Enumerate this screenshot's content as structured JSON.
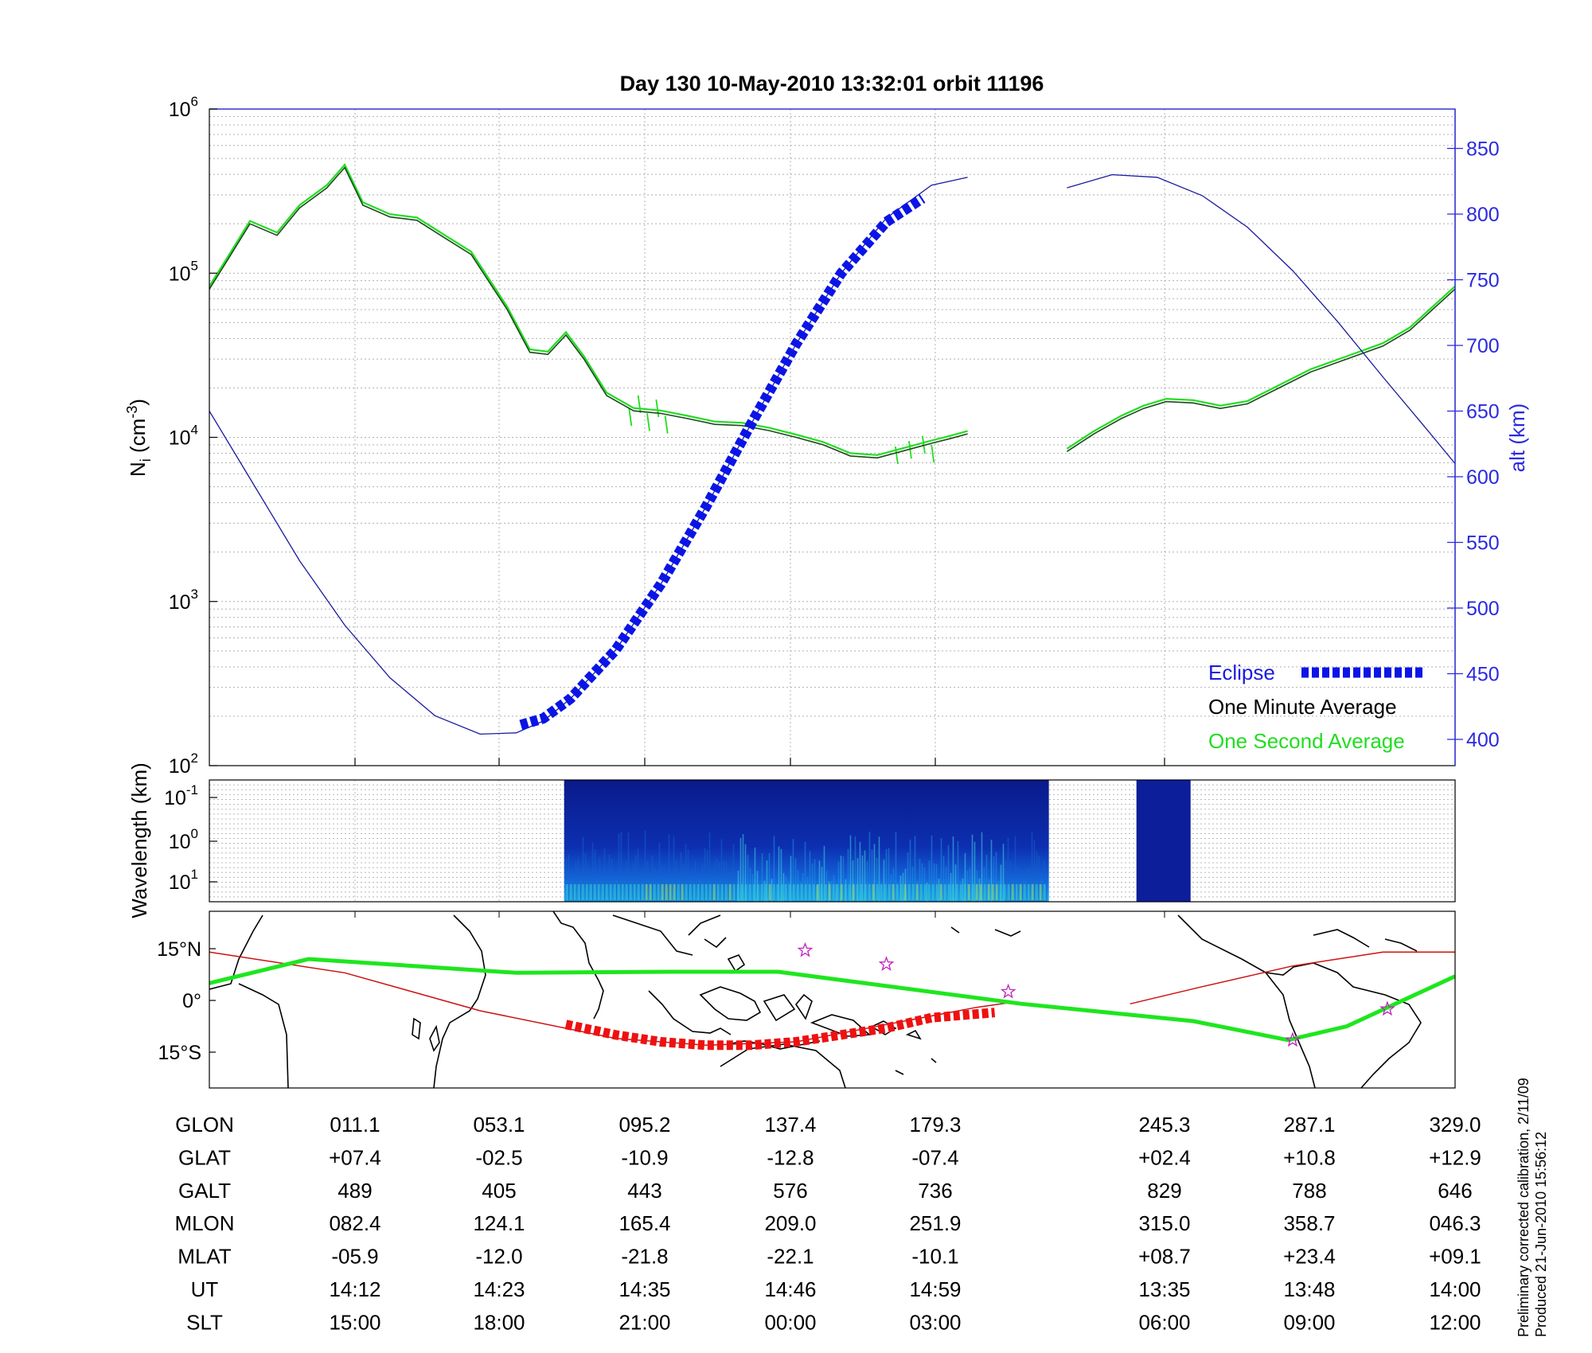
{
  "title": "Day 130  10-May-2010 13:32:01   orbit 11196",
  "footer": {
    "line1": "Preliminary corrected calibration, 2/11/09",
    "line2": "Produced 21-Jun-2010 15:56:12"
  },
  "colors": {
    "minute_avg": "#1a4a1a",
    "second_avg": "#22dd22",
    "altitude": "#1a1aa0",
    "eclipse": "#0a14e6",
    "track": "#1ee61e",
    "mag_equator": "#cc1111",
    "eclipse_map": "#ee1111",
    "star": "#c020c0"
  },
  "chart_data": [
    {
      "type": "line",
      "panel": "density",
      "ylabel": "N_i (cm^-3)",
      "ylabel_main": "N",
      "ylabel_sub": "i",
      "ylabel_unit": "(cm",
      "ylabel_exp": "-3",
      "ylabel_close": ")",
      "yscale": "log",
      "ylim": [
        100,
        1000000
      ],
      "left_ticks": [
        {
          "base": "10",
          "exp": "2",
          "value": 100
        },
        {
          "base": "10",
          "exp": "3",
          "value": 1000
        },
        {
          "base": "10",
          "exp": "4",
          "value": 10000
        },
        {
          "base": "10",
          "exp": "5",
          "value": 100000
        },
        {
          "base": "10",
          "exp": "6",
          "value": 1000000
        }
      ],
      "y2label": "alt (km)",
      "y2lim": [
        380,
        880
      ],
      "right_ticks": [
        "400",
        "450",
        "500",
        "550",
        "600",
        "650",
        "700",
        "750",
        "800",
        "850"
      ],
      "x_ticks_UT": [
        "14:12",
        "14:23",
        "14:35",
        "14:46",
        "14:59",
        "13:35",
        "13:48",
        "14:00"
      ],
      "grid": true,
      "legend": {
        "placement": "bottom-right",
        "entries": [
          "Eclipse",
          "One Minute Average",
          "One Second Average"
        ]
      },
      "series": [
        {
          "name": "One Minute Average",
          "segments": [
            [
              [
                0.0,
                80000
              ],
              [
                0.2,
                120000
              ],
              [
                0.45,
                200000
              ],
              [
                0.75,
                170000
              ],
              [
                1.0,
                250000
              ],
              [
                1.3,
                330000
              ],
              [
                1.5,
                440000
              ],
              [
                1.7,
                260000
              ],
              [
                2.0,
                220000
              ],
              [
                2.3,
                210000
              ],
              [
                2.6,
                165000
              ],
              [
                2.9,
                130000
              ],
              [
                3.3,
                60000
              ],
              [
                3.55,
                33000
              ],
              [
                3.75,
                32000
              ],
              [
                3.95,
                42000
              ],
              [
                4.15,
                30000
              ],
              [
                4.4,
                18000
              ],
              [
                4.7,
                14500
              ],
              [
                5.0,
                14000
              ],
              [
                5.3,
                13000
              ],
              [
                5.6,
                12000
              ],
              [
                5.9,
                11800
              ],
              [
                6.2,
                11000
              ],
              [
                6.5,
                10000
              ],
              [
                6.8,
                9000
              ],
              [
                7.1,
                7700
              ],
              [
                7.4,
                7500
              ],
              [
                7.7,
                8300
              ],
              [
                8.0,
                9200
              ],
              [
                8.2,
                9800
              ],
              [
                8.4,
                10500
              ]
            ],
            [
              [
                9.5,
                8200
              ],
              [
                9.8,
                10500
              ],
              [
                10.1,
                13000
              ],
              [
                10.35,
                15000
              ],
              [
                10.6,
                16500
              ],
              [
                10.9,
                16200
              ],
              [
                11.2,
                15000
              ],
              [
                11.5,
                16000
              ],
              [
                11.85,
                20000
              ],
              [
                12.2,
                25000
              ],
              [
                12.6,
                30000
              ],
              [
                13.0,
                36000
              ],
              [
                13.3,
                45000
              ],
              [
                13.55,
                60000
              ],
              [
                13.8,
                80000
              ]
            ]
          ]
        },
        {
          "name": "One Second Average",
          "spikes": [
            [
              4.65,
              15000
            ],
            [
              4.75,
              18000
            ],
            [
              4.85,
              14000
            ],
            [
              4.95,
              17000
            ],
            [
              5.05,
              13500
            ],
            [
              7.6,
              8800
            ],
            [
              7.75,
              9500
            ],
            [
              7.9,
              10200
            ],
            [
              8.0,
              9000
            ]
          ]
        },
        {
          "name": "Altitude",
          "axis": "right",
          "segments": [
            [
              [
                0.0,
                650
              ],
              [
                0.5,
                593
              ],
              [
                1.0,
                536
              ],
              [
                1.5,
                487
              ],
              [
                2.0,
                447
              ],
              [
                2.5,
                418
              ],
              [
                3.0,
                404
              ],
              [
                3.4,
                405
              ],
              [
                3.7,
                414
              ],
              [
                4.0,
                431
              ],
              [
                4.5,
                468
              ],
              [
                5.0,
                518
              ],
              [
                5.5,
                577
              ],
              [
                6.0,
                640
              ],
              [
                6.5,
                701
              ],
              [
                7.0,
                755
              ],
              [
                7.5,
                797
              ],
              [
                8.0,
                822
              ],
              [
                8.4,
                828
              ]
            ],
            [
              [
                9.5,
                820
              ],
              [
                10.0,
                830
              ],
              [
                10.5,
                828
              ],
              [
                11.0,
                814
              ],
              [
                11.5,
                790
              ],
              [
                12.0,
                757
              ],
              [
                12.5,
                718
              ],
              [
                13.0,
                676
              ],
              [
                13.5,
                635
              ],
              [
                13.8,
                610
              ]
            ]
          ]
        },
        {
          "name": "Eclipse",
          "axis": "right",
          "points": [
            [
              3.45,
              411
            ],
            [
              3.7,
              416
            ],
            [
              4.0,
              431
            ],
            [
              4.5,
              468
            ],
            [
              5.0,
              518
            ],
            [
              5.5,
              577
            ],
            [
              6.0,
              640
            ],
            [
              6.5,
              701
            ],
            [
              7.0,
              755
            ],
            [
              7.5,
              794
            ],
            [
              7.9,
              812
            ]
          ]
        }
      ]
    },
    {
      "type": "heatmap",
      "panel": "spectrogram",
      "ylabel": "Wavelength (km)",
      "yscale": "log",
      "y_ticks": [
        {
          "base": "10",
          "exp": "-1"
        },
        {
          "base": "10",
          "exp": "0"
        },
        {
          "base": "10",
          "exp": "1"
        }
      ],
      "active_intervals": [
        [
          3.93,
          9.3
        ],
        [
          10.27,
          10.87
        ]
      ]
    },
    {
      "type": "line",
      "panel": "map",
      "y_ticks": [
        "15°N",
        "0°",
        "15°S"
      ],
      "series": [
        {
          "name": "Satellite track",
          "points": [
            [
              0,
              5
            ],
            [
              1.1,
              12
            ],
            [
              3.4,
              8
            ],
            [
              5.1,
              8.3
            ],
            [
              6.3,
              8.3
            ],
            [
              9.0,
              -1
            ],
            [
              10.9,
              -6
            ],
            [
              11.95,
              -11.5
            ],
            [
              12.6,
              -7.5
            ],
            [
              13.8,
              7
            ]
          ]
        },
        {
          "name": "Magnetic equator",
          "points": [
            [
              0,
              14
            ],
            [
              1.5,
              8
            ],
            [
              3.0,
              -3
            ],
            [
              4.5,
              -11
            ],
            [
              5.5,
              -13
            ],
            [
              6.5,
              -12
            ],
            [
              7.5,
              -7
            ],
            [
              8.5,
              -2
            ],
            [
              8.9,
              -0.5
            ]
          ]
        },
        {
          "name": "Magnetic equator (2)",
          "points": [
            [
              10.2,
              -1
            ],
            [
              11.0,
              4
            ],
            [
              12.0,
              10
            ],
            [
              13.0,
              14
            ],
            [
              13.8,
              14
            ]
          ]
        },
        {
          "name": "Eclipse segment",
          "points": [
            [
              3.95,
              -7
            ],
            [
              4.5,
              -10
            ],
            [
              5.0,
              -12
            ],
            [
              5.5,
              -13
            ],
            [
              6.0,
              -13
            ],
            [
              6.5,
              -12
            ],
            [
              7.0,
              -10
            ],
            [
              7.5,
              -8
            ],
            [
              8.0,
              -5
            ],
            [
              8.7,
              -3.5
            ]
          ]
        }
      ],
      "stars": [
        [
          6.6,
          14.5
        ],
        [
          7.5,
          10.5
        ],
        [
          8.85,
          2.5
        ],
        [
          12.0,
          -11.5
        ],
        [
          13.05,
          -2.5
        ]
      ]
    },
    {
      "type": "table",
      "panel": "ephemeris",
      "rows": [
        {
          "label": "GLON",
          "values": [
            "011.1",
            "053.1",
            "095.2",
            "137.4",
            "179.3",
            "245.3",
            "287.1",
            "329.0"
          ]
        },
        {
          "label": "GLAT",
          "values": [
            "+07.4",
            "-02.5",
            "-10.9",
            "-12.8",
            "-07.4",
            "+02.4",
            "+10.8",
            "+12.9"
          ]
        },
        {
          "label": "GALT",
          "values": [
            "489",
            "405",
            "443",
            "576",
            "736",
            "829",
            "788",
            "646"
          ]
        },
        {
          "label": "MLON",
          "values": [
            "082.4",
            "124.1",
            "165.4",
            "209.0",
            "251.9",
            "315.0",
            "358.7",
            "046.3"
          ]
        },
        {
          "label": "MLAT",
          "values": [
            "-05.9",
            "-12.0",
            "-21.8",
            "-22.1",
            "-10.1",
            "+08.7",
            "+23.4",
            "+09.1"
          ]
        },
        {
          "label": "UT",
          "values": [
            "14:12",
            "14:23",
            "14:35",
            "14:46",
            "14:59",
            "13:35",
            "13:48",
            "14:00"
          ]
        },
        {
          "label": "SLT",
          "values": [
            "15:00",
            "18:00",
            "21:00",
            "00:00",
            "03:00",
            "06:00",
            "09:00",
            "12:00"
          ]
        }
      ]
    }
  ]
}
